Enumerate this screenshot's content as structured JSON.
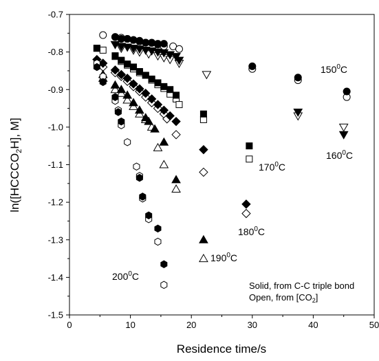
{
  "chart_data": {
    "type": "scatter",
    "xlabel": "Residence time/s",
    "ylabel_parts": {
      "pre": "ln([HCCCO",
      "sub": "2",
      "post": "H], M]"
    },
    "xlim": [
      0,
      50
    ],
    "ylim": [
      -1.5,
      -0.7
    ],
    "xticks": [
      0,
      10,
      20,
      30,
      40,
      50
    ],
    "yticks": [
      -0.7,
      -0.8,
      -0.9,
      -1.0,
      -1.1,
      -1.2,
      -1.3,
      -1.4,
      -1.5
    ],
    "xtick_labels": [
      "0",
      "10",
      "20",
      "30",
      "40",
      "50"
    ],
    "ytick_labels": [
      "-0.7",
      "-0.8",
      "-0.9",
      "-1.0",
      "-1.1",
      "-1.2",
      "-1.3",
      "-1.4",
      "-1.5"
    ],
    "grid": false,
    "annotations": {
      "legend_line1": "Solid, from C-C triple bond",
      "legend_line2_pre": "Open,  from [CO",
      "legend_line2_sub": "2",
      "legend_line2_post": "]"
    },
    "series": [
      {
        "label": {
          "value": "150",
          "sup": "0",
          "unit": "C"
        },
        "marker": "circle",
        "solid": [
          [
            7.5,
            -0.76
          ],
          [
            8.5,
            -0.765
          ],
          [
            9.5,
            -0.765
          ],
          [
            10.5,
            -0.768
          ],
          [
            11.5,
            -0.77
          ],
          [
            12.5,
            -0.775
          ],
          [
            13.5,
            -0.775
          ],
          [
            14.5,
            -0.778
          ],
          [
            15.5,
            -0.778
          ],
          [
            30,
            -0.838
          ],
          [
            37.5,
            -0.868
          ],
          [
            45.5,
            -0.905
          ]
        ],
        "open": [
          [
            5.5,
            -0.755
          ],
          [
            7.5,
            -0.76
          ],
          [
            8.5,
            -0.762
          ],
          [
            9.5,
            -0.765
          ],
          [
            10.5,
            -0.768
          ],
          [
            11.5,
            -0.772
          ],
          [
            12.5,
            -0.775
          ],
          [
            13.5,
            -0.776
          ],
          [
            14.5,
            -0.78
          ],
          [
            15.5,
            -0.785
          ],
          [
            17,
            -0.785
          ],
          [
            18,
            -0.792
          ],
          [
            30,
            -0.845
          ],
          [
            37.5,
            -0.875
          ],
          [
            45.5,
            -0.92
          ]
        ]
      },
      {
        "label": {
          "value": "160",
          "sup": "0",
          "unit": "C"
        },
        "marker": "triangle-down",
        "solid": [
          [
            7.5,
            -0.78
          ],
          [
            8.5,
            -0.785
          ],
          [
            9.5,
            -0.787
          ],
          [
            10.5,
            -0.79
          ],
          [
            11.5,
            -0.792
          ],
          [
            12.5,
            -0.795
          ],
          [
            13.5,
            -0.797
          ],
          [
            14.5,
            -0.8
          ],
          [
            15.5,
            -0.802
          ],
          [
            16.5,
            -0.807
          ],
          [
            17.5,
            -0.812
          ],
          [
            18,
            -0.822
          ],
          [
            37.5,
            -0.96
          ],
          [
            45,
            -1.02
          ]
        ],
        "open": [
          [
            8.5,
            -0.79
          ],
          [
            10.5,
            -0.795
          ],
          [
            11.5,
            -0.8
          ],
          [
            13,
            -0.805
          ],
          [
            14.5,
            -0.81
          ],
          [
            15.5,
            -0.815
          ],
          [
            16.5,
            -0.82
          ],
          [
            18,
            -0.83
          ],
          [
            22.5,
            -0.86
          ],
          [
            37.5,
            -0.97
          ],
          [
            45,
            -1.0
          ]
        ]
      },
      {
        "label": {
          "value": "170",
          "sup": "0",
          "unit": "C"
        },
        "marker": "square",
        "solid": [
          [
            4.5,
            -0.79
          ],
          [
            7.5,
            -0.81
          ],
          [
            8.5,
            -0.822
          ],
          [
            9.5,
            -0.832
          ],
          [
            10.5,
            -0.84
          ],
          [
            11.5,
            -0.852
          ],
          [
            12.5,
            -0.862
          ],
          [
            13.5,
            -0.872
          ],
          [
            14.5,
            -0.882
          ],
          [
            15.5,
            -0.892
          ],
          [
            16.5,
            -0.9
          ],
          [
            17.5,
            -0.915
          ],
          [
            22,
            -0.965
          ],
          [
            29.5,
            -1.05
          ]
        ],
        "open": [
          [
            4.5,
            -0.79
          ],
          [
            5.5,
            -0.795
          ],
          [
            7.5,
            -0.812
          ],
          [
            8.5,
            -0.825
          ],
          [
            9.5,
            -0.835
          ],
          [
            10.5,
            -0.845
          ],
          [
            11.5,
            -0.855
          ],
          [
            12.5,
            -0.862
          ],
          [
            13.5,
            -0.875
          ],
          [
            14.5,
            -0.887
          ],
          [
            15.5,
            -0.897
          ],
          [
            16.5,
            -0.912
          ],
          [
            17.5,
            -0.925
          ],
          [
            18,
            -0.94
          ],
          [
            22,
            -0.98
          ],
          [
            29.5,
            -1.085
          ]
        ]
      },
      {
        "label": {
          "value": "180",
          "sup": "0",
          "unit": "C"
        },
        "marker": "diamond",
        "solid": [
          [
            4.5,
            -0.82
          ],
          [
            5.5,
            -0.83
          ],
          [
            7.5,
            -0.848
          ],
          [
            8.5,
            -0.86
          ],
          [
            9.5,
            -0.87
          ],
          [
            10.5,
            -0.885
          ],
          [
            11.5,
            -0.898
          ],
          [
            12.5,
            -0.91
          ],
          [
            13.5,
            -0.925
          ],
          [
            14.5,
            -0.94
          ],
          [
            15.5,
            -0.955
          ],
          [
            16.5,
            -0.97
          ],
          [
            17.5,
            -0.985
          ],
          [
            22,
            -1.06
          ],
          [
            29,
            -1.205
          ]
        ],
        "open": [
          [
            5.5,
            -0.84
          ],
          [
            7.5,
            -0.855
          ],
          [
            8.5,
            -0.865
          ],
          [
            9.5,
            -0.878
          ],
          [
            10.5,
            -0.892
          ],
          [
            11.5,
            -0.905
          ],
          [
            12.5,
            -0.92
          ],
          [
            13.5,
            -0.935
          ],
          [
            14.5,
            -0.95
          ],
          [
            15.5,
            -0.965
          ],
          [
            16,
            -0.978
          ],
          [
            17.5,
            -1.02
          ],
          [
            22,
            -1.12
          ],
          [
            29,
            -1.23
          ]
        ]
      },
      {
        "label": {
          "value": "190",
          "sup": "0",
          "unit": "C"
        },
        "marker": "triangle-up",
        "solid": [
          [
            5.5,
            -0.86
          ],
          [
            7.5,
            -0.888
          ],
          [
            8.5,
            -0.9
          ],
          [
            9.5,
            -0.915
          ],
          [
            10.5,
            -0.935
          ],
          [
            11.5,
            -0.955
          ],
          [
            12.5,
            -0.975
          ],
          [
            13,
            -0.985
          ],
          [
            14,
            -1.005
          ],
          [
            15.5,
            -1.04
          ],
          [
            17.5,
            -1.14
          ],
          [
            22,
            -1.3
          ]
        ],
        "open": [
          [
            5.5,
            -0.87
          ],
          [
            7.5,
            -0.9
          ],
          [
            8.5,
            -0.91
          ],
          [
            9.5,
            -0.928
          ],
          [
            10.5,
            -0.945
          ],
          [
            11.5,
            -0.965
          ],
          [
            12.5,
            -0.98
          ],
          [
            13.5,
            -1.0
          ],
          [
            14.5,
            -1.055
          ],
          [
            15.5,
            -1.1
          ],
          [
            17.5,
            -1.165
          ],
          [
            22,
            -1.35
          ]
        ]
      },
      {
        "label": {
          "value": "200",
          "sup": "0",
          "unit": "C"
        },
        "marker": "hexagon",
        "solid": [
          [
            4.5,
            -0.84
          ],
          [
            5.5,
            -0.88
          ],
          [
            7.5,
            -0.92
          ],
          [
            8,
            -0.96
          ],
          [
            8.5,
            -0.985
          ],
          [
            11.5,
            -1.135
          ],
          [
            12,
            -1.185
          ],
          [
            13,
            -1.235
          ],
          [
            14.5,
            -1.27
          ],
          [
            15.5,
            -1.365
          ]
        ],
        "open": [
          [
            4.5,
            -0.83
          ],
          [
            5.5,
            -0.865
          ],
          [
            7.5,
            -0.93
          ],
          [
            8,
            -0.955
          ],
          [
            8.5,
            -0.995
          ],
          [
            9.5,
            -1.04
          ],
          [
            11,
            -1.105
          ],
          [
            11.5,
            -1.13
          ],
          [
            12,
            -1.19
          ],
          [
            13,
            -1.245
          ],
          [
            14.5,
            -1.305
          ],
          [
            15.5,
            -1.42
          ]
        ]
      }
    ]
  }
}
